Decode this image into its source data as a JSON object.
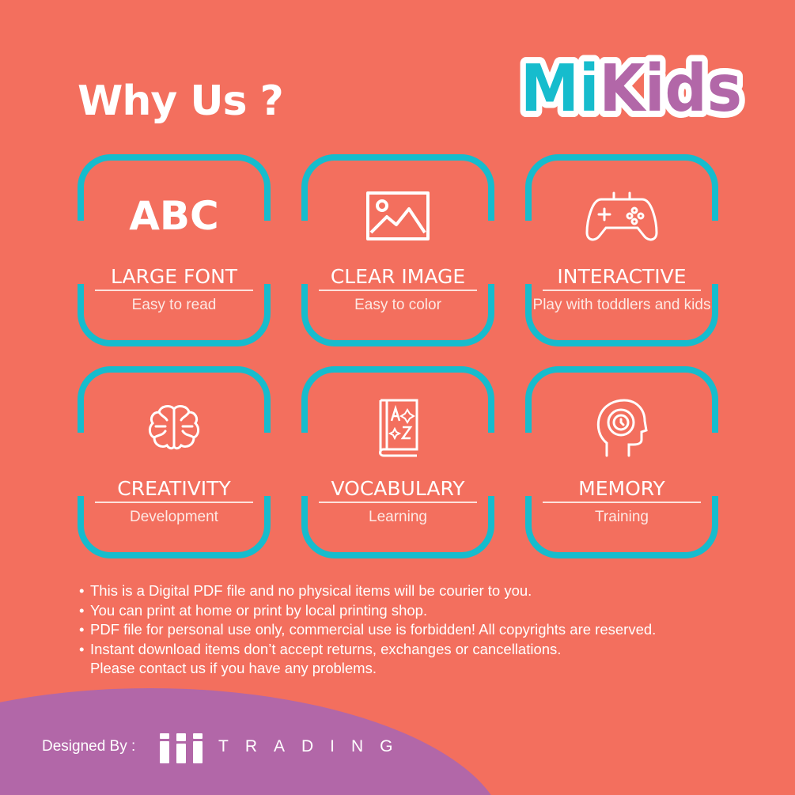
{
  "header": {
    "title": "Why Us ?",
    "logo_text": "MiKids"
  },
  "colors": {
    "background": "#f36f5e",
    "accent": "#16bccd",
    "purple": "#b267a8",
    "logo_mi": "#16bccd",
    "logo_kids": "#b267a8"
  },
  "cards": [
    {
      "icon": "abc-text",
      "icon_text": "ABC",
      "title": "LARGE FONT",
      "subtitle": "Easy to read"
    },
    {
      "icon": "image-icon",
      "title": "CLEAR IMAGE",
      "subtitle": "Easy to color"
    },
    {
      "icon": "gamepad-icon",
      "title": "INTERACTIVE",
      "subtitle": "Play with toddlers and kids"
    },
    {
      "icon": "brain-icon",
      "title": "CREATIVITY",
      "subtitle": "Development"
    },
    {
      "icon": "book-icon",
      "title": "VOCABULARY",
      "subtitle": "Learning"
    },
    {
      "icon": "head-clock-icon",
      "title": "MEMORY",
      "subtitle": "Training"
    }
  ],
  "notes": [
    "This is a Digital PDF file and no physical items will be courier to you.",
    "You can print at home or print by local printing shop.",
    "PDF file for personal use only, commercial use is forbidden! All copyrights are reserved.",
    "Instant download items don’t accept returns, exchanges or cancellations.",
    "Please contact us if you have any problems."
  ],
  "footer": {
    "designed_by": "Designed By :",
    "brand": "TRADING"
  }
}
